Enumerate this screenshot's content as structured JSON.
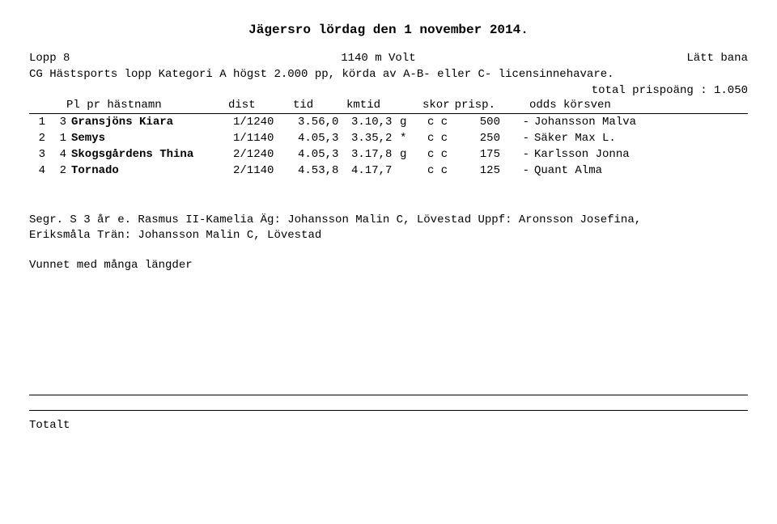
{
  "title": "Jägersro lördag den 1 november 2014.",
  "race": {
    "label": "Lopp 8",
    "distance_mode": "1140 m  Volt",
    "track": "Lätt bana",
    "description": "CG Hästsports lopp Kategori A högst 2.000 pp, körda av A-B- eller C- licensinnehavare.",
    "prize_line": "total prispoäng : 1.050"
  },
  "headers": {
    "pl_pr_name": "Pl pr hästnamn",
    "dist": "dist",
    "tid": "tid",
    "kmtid": "kmtid",
    "skor": "skor",
    "prisp": "prisp.",
    "odds_korsven": "odds körsven"
  },
  "results": [
    {
      "pl": "1",
      "pr": "3",
      "name": "Gransjöns Kiara",
      "dist": "1/1240",
      "tid": "3.56,0",
      "kmtid": "3.10,3",
      "flag": "g",
      "skor": "c c",
      "prisp": "500",
      "odds": "-",
      "korsven": "Johansson Malva"
    },
    {
      "pl": "2",
      "pr": "1",
      "name": "Semys",
      "dist": "1/1140",
      "tid": "4.05,3",
      "kmtid": "3.35,2",
      "flag": "*",
      "skor": "c c",
      "prisp": "250",
      "odds": "-",
      "korsven": "Säker Max L."
    },
    {
      "pl": "3",
      "pr": "4",
      "name": "Skogsgårdens Thina",
      "dist": "2/1240",
      "tid": "4.05,3",
      "kmtid": "3.17,8",
      "flag": "g",
      "skor": "c c",
      "prisp": "175",
      "odds": "-",
      "korsven": "Karlsson Jonna"
    },
    {
      "pl": "4",
      "pr": "2",
      "name": "Tornado",
      "dist": "2/1140",
      "tid": "4.53,8",
      "kmtid": "4.17,7",
      "flag": "",
      "skor": "c c",
      "prisp": "125",
      "odds": "-",
      "korsven": "Quant Alma"
    }
  ],
  "notes": {
    "line1": "Segr. S 3 år e. Rasmus II-Kamelia Äg: Johansson Malin C, Lövestad Uppf: Aronsson Josefina,",
    "line2": "Eriksmåla Trän: Johansson Malin C, Lövestad",
    "line3": "Vunnet med många längder"
  },
  "footer": {
    "totalt": "Totalt"
  }
}
